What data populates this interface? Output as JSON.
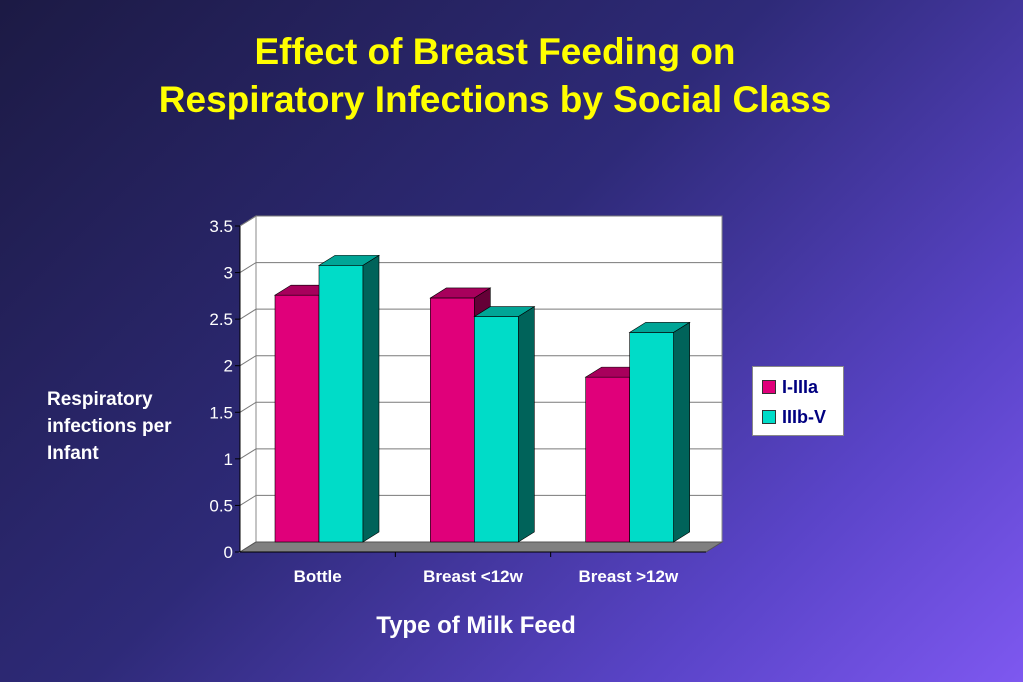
{
  "title_line1": "Effect of Breast Feeding on",
  "title_line2": "Respiratory Infections by Social Class",
  "chart_data": {
    "type": "bar",
    "categories": [
      "Bottle",
      "Breast <12w",
      "Breast >12w"
    ],
    "series": [
      {
        "name": "I-IIIa",
        "values": [
          2.65,
          2.62,
          1.77
        ],
        "color": "#e0007a"
      },
      {
        "name": "IIIb-V",
        "values": [
          2.97,
          2.42,
          2.25
        ],
        "color": "#00dcc8"
      }
    ],
    "ylabel": "Respiratory infections per Infant",
    "xlabel": "Type of Milk Feed",
    "ylim": [
      0,
      3.5
    ],
    "yticks": [
      "0",
      "0.5",
      "1",
      "1.5",
      "2",
      "2.5",
      "3",
      "3.5"
    ],
    "grid": true,
    "legend_position": "right",
    "style": "3d-bar"
  },
  "colors": {
    "title": "#ffff00",
    "text": "#ffffff",
    "plot_background": "#ffffff",
    "legend_text": "#000080"
  }
}
